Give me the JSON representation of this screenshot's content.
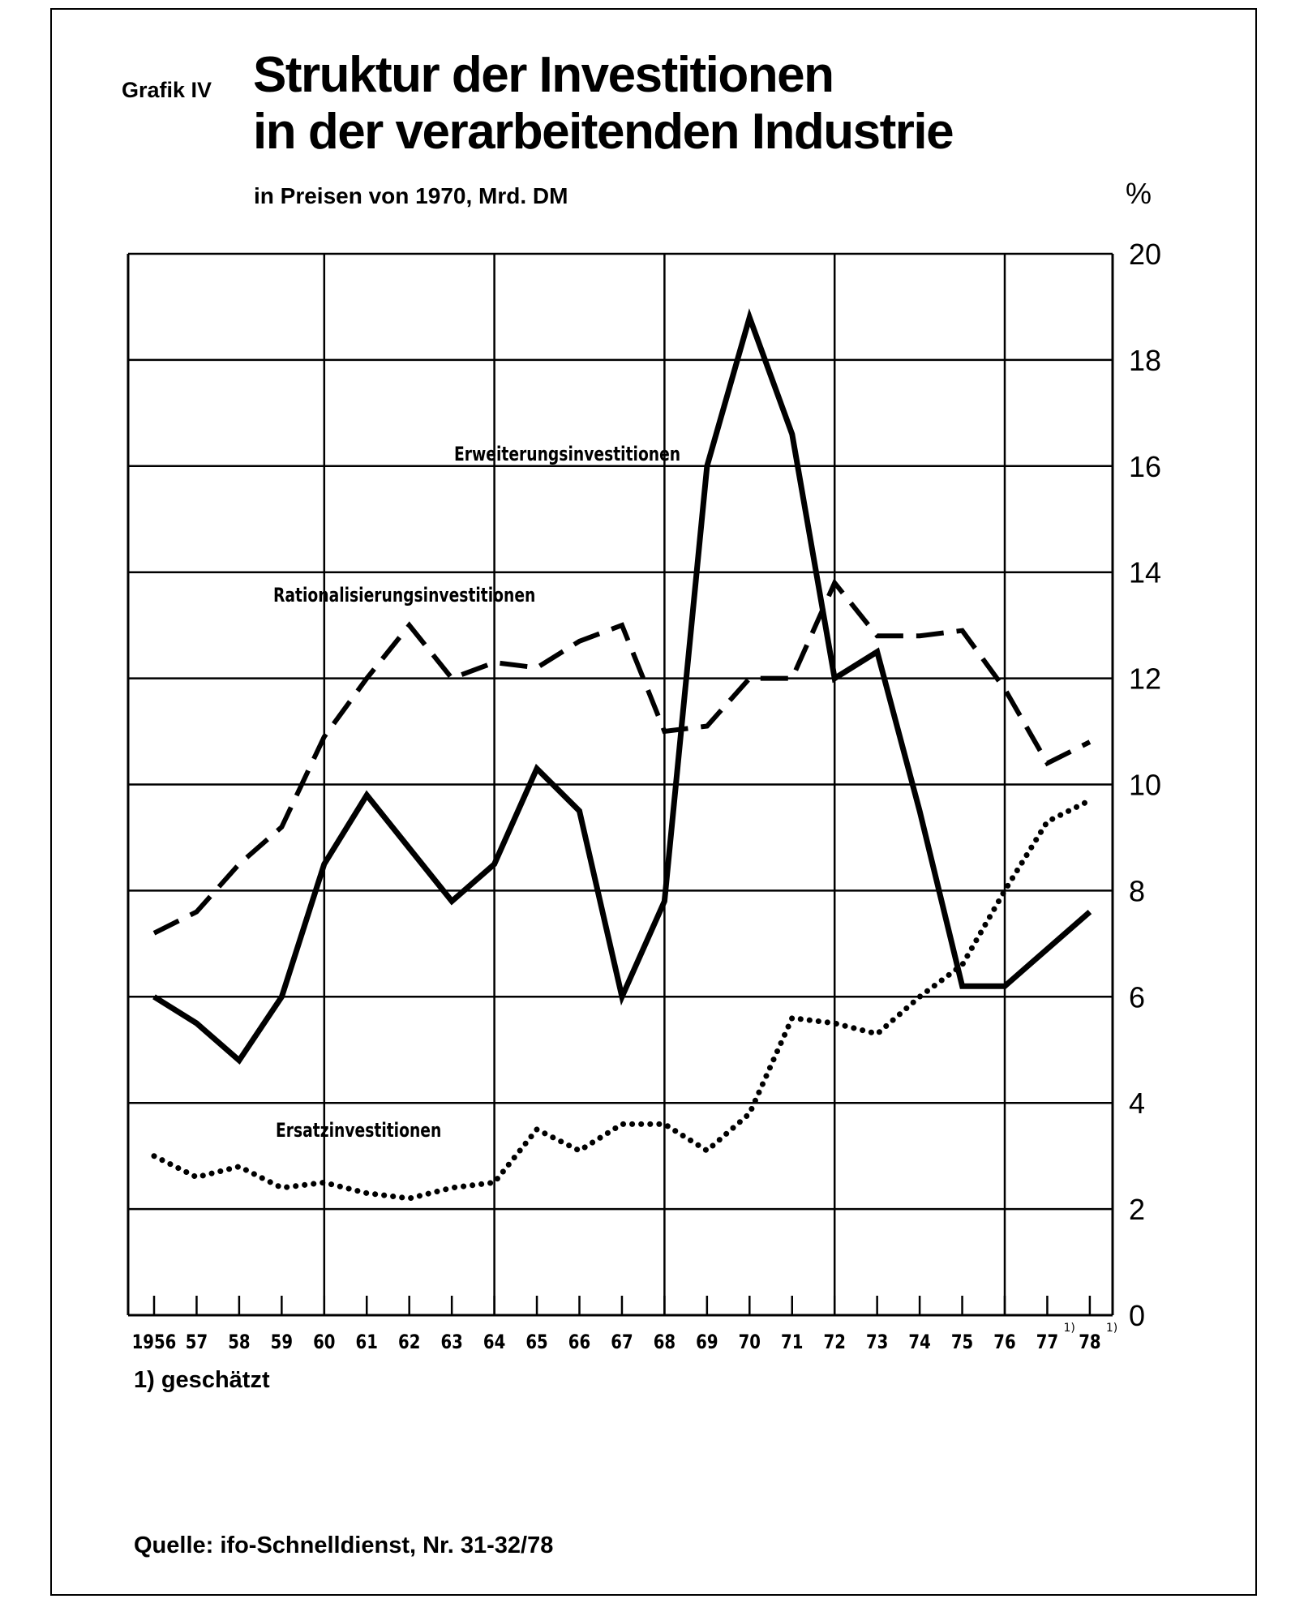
{
  "figure": {
    "label": "Grafik IV",
    "title_line1": "Struktur der Investitionen",
    "title_line2": "in der verarbeitenden Industrie",
    "subtitle": "in Preisen von 1970, Mrd. DM",
    "unit_label": "%",
    "footnote": "1) geschätzt",
    "source": "Quelle: ifo-Schnelldienst, Nr. 31-32/78"
  },
  "chart_data": {
    "type": "line",
    "title": "Struktur der Investitionen in der verarbeitenden Industrie",
    "subtitle": "in Preisen von 1970, Mrd. DM",
    "ylabel": "%",
    "ylim": [
      0,
      20
    ],
    "yticks": [
      0,
      2,
      4,
      6,
      8,
      10,
      12,
      14,
      16,
      18,
      20
    ],
    "y_axis_side": "right",
    "grid": true,
    "x_tick_labels": [
      "1956",
      "57",
      "58",
      "59",
      "60",
      "61",
      "62",
      "63",
      "64",
      "65",
      "66",
      "67",
      "68",
      "69",
      "70",
      "71",
      "72",
      "73",
      "74",
      "75",
      "76",
      "77",
      "78"
    ],
    "x_tick_superscripts": {
      "77": "1)",
      "78": "1)"
    },
    "x": [
      1956,
      1957,
      1958,
      1959,
      1960,
      1961,
      1962,
      1963,
      1964,
      1965,
      1966,
      1967,
      1968,
      1969,
      1970,
      1971,
      1972,
      1973,
      1974,
      1975,
      1976,
      1977,
      1978
    ],
    "series": [
      {
        "name": "Erweiterungsinvestitionen",
        "style": "solid",
        "values": [
          6.0,
          5.5,
          4.8,
          6.0,
          8.5,
          9.8,
          8.8,
          7.8,
          8.5,
          10.3,
          9.5,
          6.0,
          7.8,
          16.0,
          18.8,
          16.6,
          12.0,
          12.5,
          9.5,
          6.2,
          6.2,
          6.9,
          7.6
        ]
      },
      {
        "name": "Rationalisierungsinvestitionen",
        "style": "dashed",
        "values": [
          7.2,
          7.6,
          8.5,
          9.2,
          10.9,
          12.0,
          13.0,
          12.0,
          12.3,
          12.2,
          12.7,
          13.0,
          11.0,
          11.1,
          12.0,
          12.0,
          13.8,
          12.8,
          12.8,
          12.9,
          11.8,
          10.4,
          10.8
        ]
      },
      {
        "name": "Ersatzinvestitionen",
        "style": "dotted",
        "values": [
          3.0,
          2.6,
          2.8,
          2.4,
          2.5,
          2.3,
          2.2,
          2.4,
          2.5,
          3.5,
          3.1,
          3.6,
          3.6,
          3.1,
          3.8,
          5.6,
          5.5,
          5.3,
          6.0,
          6.6,
          8.0,
          9.3,
          9.7
        ]
      }
    ]
  }
}
